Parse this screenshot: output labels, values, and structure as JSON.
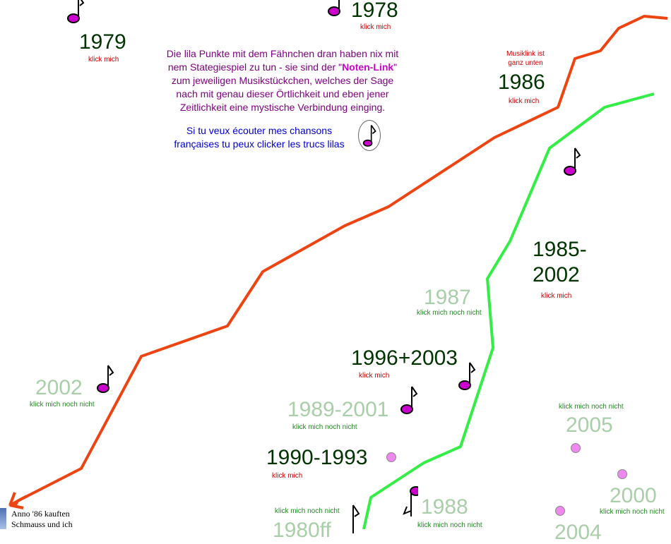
{
  "colors": {
    "red_line": "#ee4411",
    "green_line": "#33ee44",
    "note_dot": "#cc00cc",
    "dark_year": "#003300",
    "faded_year": "#a9cfa9"
  },
  "intro": {
    "line1": "Die lila Punkte mit dem Fähnchen dran haben nix mit",
    "line2_pre": "nem Stategiespiel zu tun - sie sind der \"",
    "line2_link": "Noten-Link",
    "line2_post": "\"",
    "line3": "zum jeweiligen Musikstückchen, welches der Sage",
    "line4": "nach mit genau dieser Örtlichkeit und eben jener",
    "line5": "Zeitlichkeit eine mystische Verbindung einging."
  },
  "french": {
    "line1": "Si tu veux écouter mes chansons",
    "line2": "françaises tu peux clicker les trucs lilas"
  },
  "musiklink_note": {
    "line1": "Musiklink ist",
    "line2": "ganz unten"
  },
  "labels": {
    "y1978": "1978",
    "y1979": "1979",
    "y1986": "1986",
    "y1985_line1": "1985-",
    "y1985_line2": "2002",
    "y1987": "1987",
    "y1996": "1996+2003",
    "y2002": "2002",
    "y1989": "1989-2001",
    "y1990": "1990-1993",
    "y2005": "2005",
    "y2000": "2000",
    "y1988": "1988",
    "y1980ff": "1980ff",
    "y2004": "2004"
  },
  "klick": {
    "active": "klick mich",
    "inactive": "klick mich noch nicht"
  },
  "anno": {
    "line1": "Anno '86 kauften",
    "line2": "Schmauss und ich"
  }
}
